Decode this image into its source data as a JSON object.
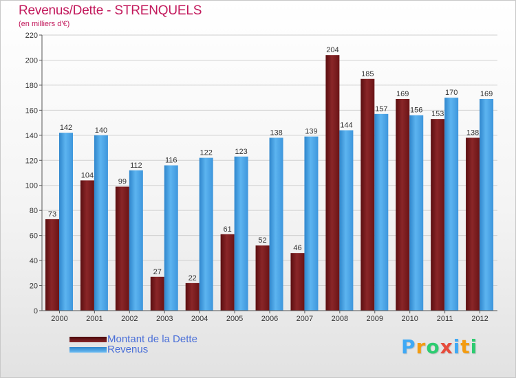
{
  "header": {
    "title": "Revenus/Dette - STRENQUELS",
    "subtitle": "(en milliers d'€)"
  },
  "chart_data": {
    "type": "bar",
    "categories": [
      "2000",
      "2001",
      "2002",
      "2003",
      "2004",
      "2005",
      "2006",
      "2007",
      "2008",
      "2009",
      "2010",
      "2011",
      "2012"
    ],
    "series": [
      {
        "name": "Montant de la Dette",
        "values": [
          73,
          104,
          99,
          27,
          22,
          61,
          52,
          46,
          204,
          185,
          169,
          153,
          138
        ],
        "color": "#7a1a1c"
      },
      {
        "name": "Revenus",
        "values": [
          142,
          140,
          112,
          116,
          122,
          123,
          138,
          139,
          144,
          157,
          156,
          170,
          169
        ],
        "color": "#4aa3e8"
      }
    ],
    "ylim": [
      0,
      220
    ],
    "yticks": [
      "0",
      "20",
      "40",
      "60",
      "80",
      "100",
      "120",
      "140",
      "160",
      "180",
      "200",
      "220"
    ],
    "grid": true,
    "legend_position": "bottom-left"
  },
  "logo": {
    "letters": [
      "P",
      "r",
      "o",
      "x",
      "i",
      "t",
      "i"
    ],
    "colors": [
      "#3fa9f5",
      "#f39c12",
      "#2ecc71",
      "#e74c3c",
      "#3fa9f5",
      "#f39c12",
      "#2ecc71"
    ]
  }
}
